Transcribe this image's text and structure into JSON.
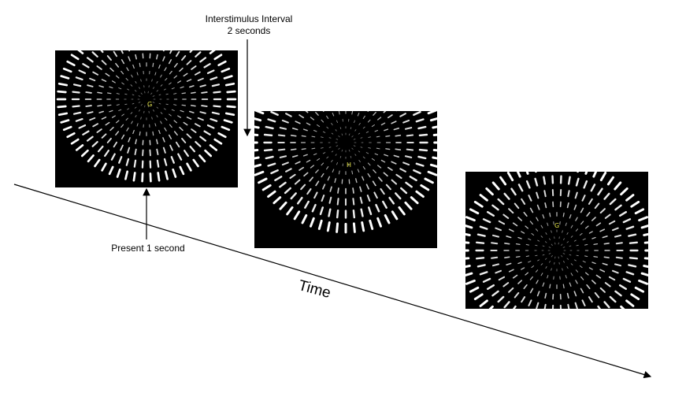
{
  "annotations": {
    "isi_line1": "Interstimulus Interval",
    "isi_line2": "2 seconds",
    "present": "Present 1 second",
    "time": "Time"
  },
  "stimuli": [
    {
      "letter": "G"
    },
    {
      "letter": "H"
    },
    {
      "letter": "G"
    }
  ],
  "colors": {
    "background": "#ffffff",
    "stimulus_bg": "#000000",
    "stripe": "#ffffff",
    "letter": "#e6e64a",
    "line": "#000000"
  }
}
